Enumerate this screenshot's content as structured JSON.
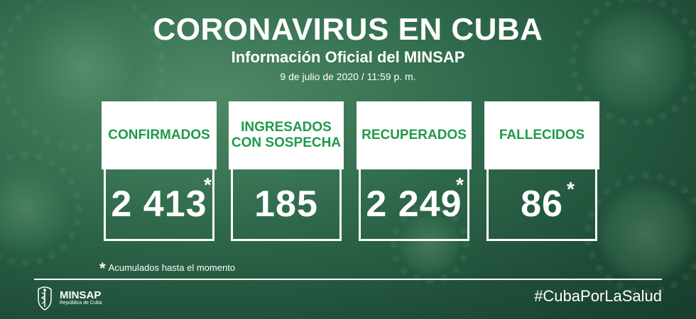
{
  "header": {
    "title": "CORONAVIRUS EN CUBA",
    "subtitle": "Información Oficial del MINSAP",
    "date": "9 de julio de 2020 / 11:59 p. m."
  },
  "cards": [
    {
      "label_line1": "CONFIRMADOS",
      "label_line2": "",
      "value": "2 413",
      "star": "*"
    },
    {
      "label_line1": "INGRESADOS",
      "label_line2": "CON SOSPECHA",
      "value": "185",
      "star": ""
    },
    {
      "label_line1": "RECUPERADOS",
      "label_line2": "",
      "value": "2 249",
      "star": "*"
    },
    {
      "label_line1": "FALLECIDOS",
      "label_line2": "",
      "value": "86",
      "star": "*"
    }
  ],
  "footnote": {
    "star": "*",
    "text": "Acumulados hasta el momento"
  },
  "footer": {
    "logo_name": "MINSAP",
    "logo_sub": "República de Cuba",
    "hashtag": "#CubaPorLaSalud"
  },
  "colors": {
    "label_green": "#1f9a4a",
    "background": "#2f6a4c"
  }
}
